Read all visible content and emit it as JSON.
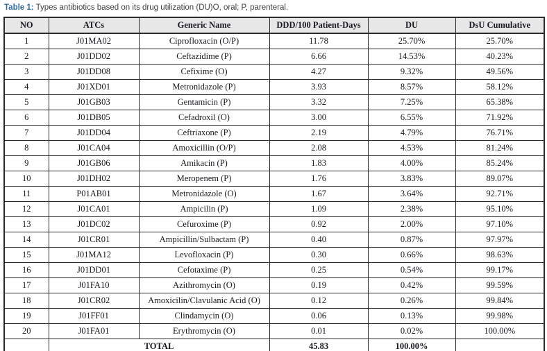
{
  "caption": {
    "label": "Table 1:",
    "text": " Types antibiotics based on its drug utilization (DU)O, oral; P, parenteral."
  },
  "colors": {
    "caption_label": "#2f6da8",
    "caption_text": "#3f3f3f",
    "header_bg": "#e7e7e7",
    "border": "#2a2a2a",
    "cell_text": "#18181f",
    "row_bg": "#ffffff"
  },
  "table": {
    "columns": [
      "NO",
      "ATCs",
      "Generic Name",
      "DDD/100 Patient-Days",
      "DU",
      "DsU Cumulative"
    ],
    "rows": [
      {
        "no": "1",
        "atc": "J01MA02",
        "generic": "Ciprofloxacin (O/P)",
        "ddd": "11.78",
        "du": "25.70%",
        "dsu": "25.70%"
      },
      {
        "no": "2",
        "atc": "J01DD02",
        "generic": "Ceftazidime (P)",
        "ddd": "6.66",
        "du": "14.53%",
        "dsu": "40.23%"
      },
      {
        "no": "3",
        "atc": "J01DD08",
        "generic": "Cefixime (O)",
        "ddd": "4.27",
        "du": "9.32%",
        "dsu": "49.56%"
      },
      {
        "no": "4",
        "atc": "J01XD01",
        "generic": "Metronidazole (P)",
        "ddd": "3.93",
        "du": "8.57%",
        "dsu": "58.12%"
      },
      {
        "no": "5",
        "atc": "J01GB03",
        "generic": "Gentamicin (P)",
        "ddd": "3.32",
        "du": "7.25%",
        "dsu": "65.38%"
      },
      {
        "no": "6",
        "atc": "J01DB05",
        "generic": "Cefadroxil (O)",
        "ddd": "3.00",
        "du": "6.55%",
        "dsu": "71.92%"
      },
      {
        "no": "7",
        "atc": "J01DD04",
        "generic": "Ceftriaxone (P)",
        "ddd": "2.19",
        "du": "4.79%",
        "dsu": "76.71%"
      },
      {
        "no": "8",
        "atc": "J01CA04",
        "generic": "Amoxicillin (O/P)",
        "ddd": "2.08",
        "du": "4.53%",
        "dsu": "81.24%"
      },
      {
        "no": "9",
        "atc": "J01GB06",
        "generic": "Amikacin (P)",
        "ddd": "1.83",
        "du": "4.00%",
        "dsu": "85.24%"
      },
      {
        "no": "10",
        "atc": "J01DH02",
        "generic": "Meropenem (P)",
        "ddd": "1.76",
        "du": "3.83%",
        "dsu": "89.07%"
      },
      {
        "no": "11",
        "atc": "P01AB01",
        "generic": "Metronidazole (O)",
        "ddd": "1.67",
        "du": "3.64%",
        "dsu": "92.71%"
      },
      {
        "no": "12",
        "atc": "J01CA01",
        "generic": "Ampicilin (P)",
        "ddd": "1.09",
        "du": "2.38%",
        "dsu": "95.10%"
      },
      {
        "no": "13",
        "atc": "J01DC02",
        "generic": "Cefuroxime (P)",
        "ddd": "0.92",
        "du": "2.00%",
        "dsu": "97.10%"
      },
      {
        "no": "14",
        "atc": "J01CR01",
        "generic": "Ampicillin/Sulbactam (P)",
        "ddd": "0.40",
        "du": "0.87%",
        "dsu": "97.97%"
      },
      {
        "no": "15",
        "atc": "J01MA12",
        "generic": "Levofloxacin (P)",
        "ddd": "0.30",
        "du": "0.66%",
        "dsu": "98.63%"
      },
      {
        "no": "16",
        "atc": "J01DD01",
        "generic": "Cefotaxime (P)",
        "ddd": "0.25",
        "du": "0.54%",
        "dsu": "99.17%"
      },
      {
        "no": "17",
        "atc": "J01FA10",
        "generic": "Azithromycin (O)",
        "ddd": "0.19",
        "du": "0.42%",
        "dsu": "99.59%"
      },
      {
        "no": "18",
        "atc": "J01CR02",
        "generic": "Amoxicilin/Clavulanic Acid (O)",
        "ddd": "0.12",
        "du": "0.26%",
        "dsu": "99.84%"
      },
      {
        "no": "19",
        "atc": "J01FF01",
        "generic": "Clindamycin (O)",
        "ddd": "0.06",
        "du": "0.13%",
        "dsu": "99.98%"
      },
      {
        "no": "20",
        "atc": "J01FA01",
        "generic": "Erythromycin (O)",
        "ddd": "0.01",
        "du": "0.02%",
        "dsu": "100.00%"
      }
    ],
    "total": {
      "no": "",
      "label": "TOTAL",
      "ddd": "45.83",
      "du": "100.00%",
      "dsu": ""
    }
  }
}
